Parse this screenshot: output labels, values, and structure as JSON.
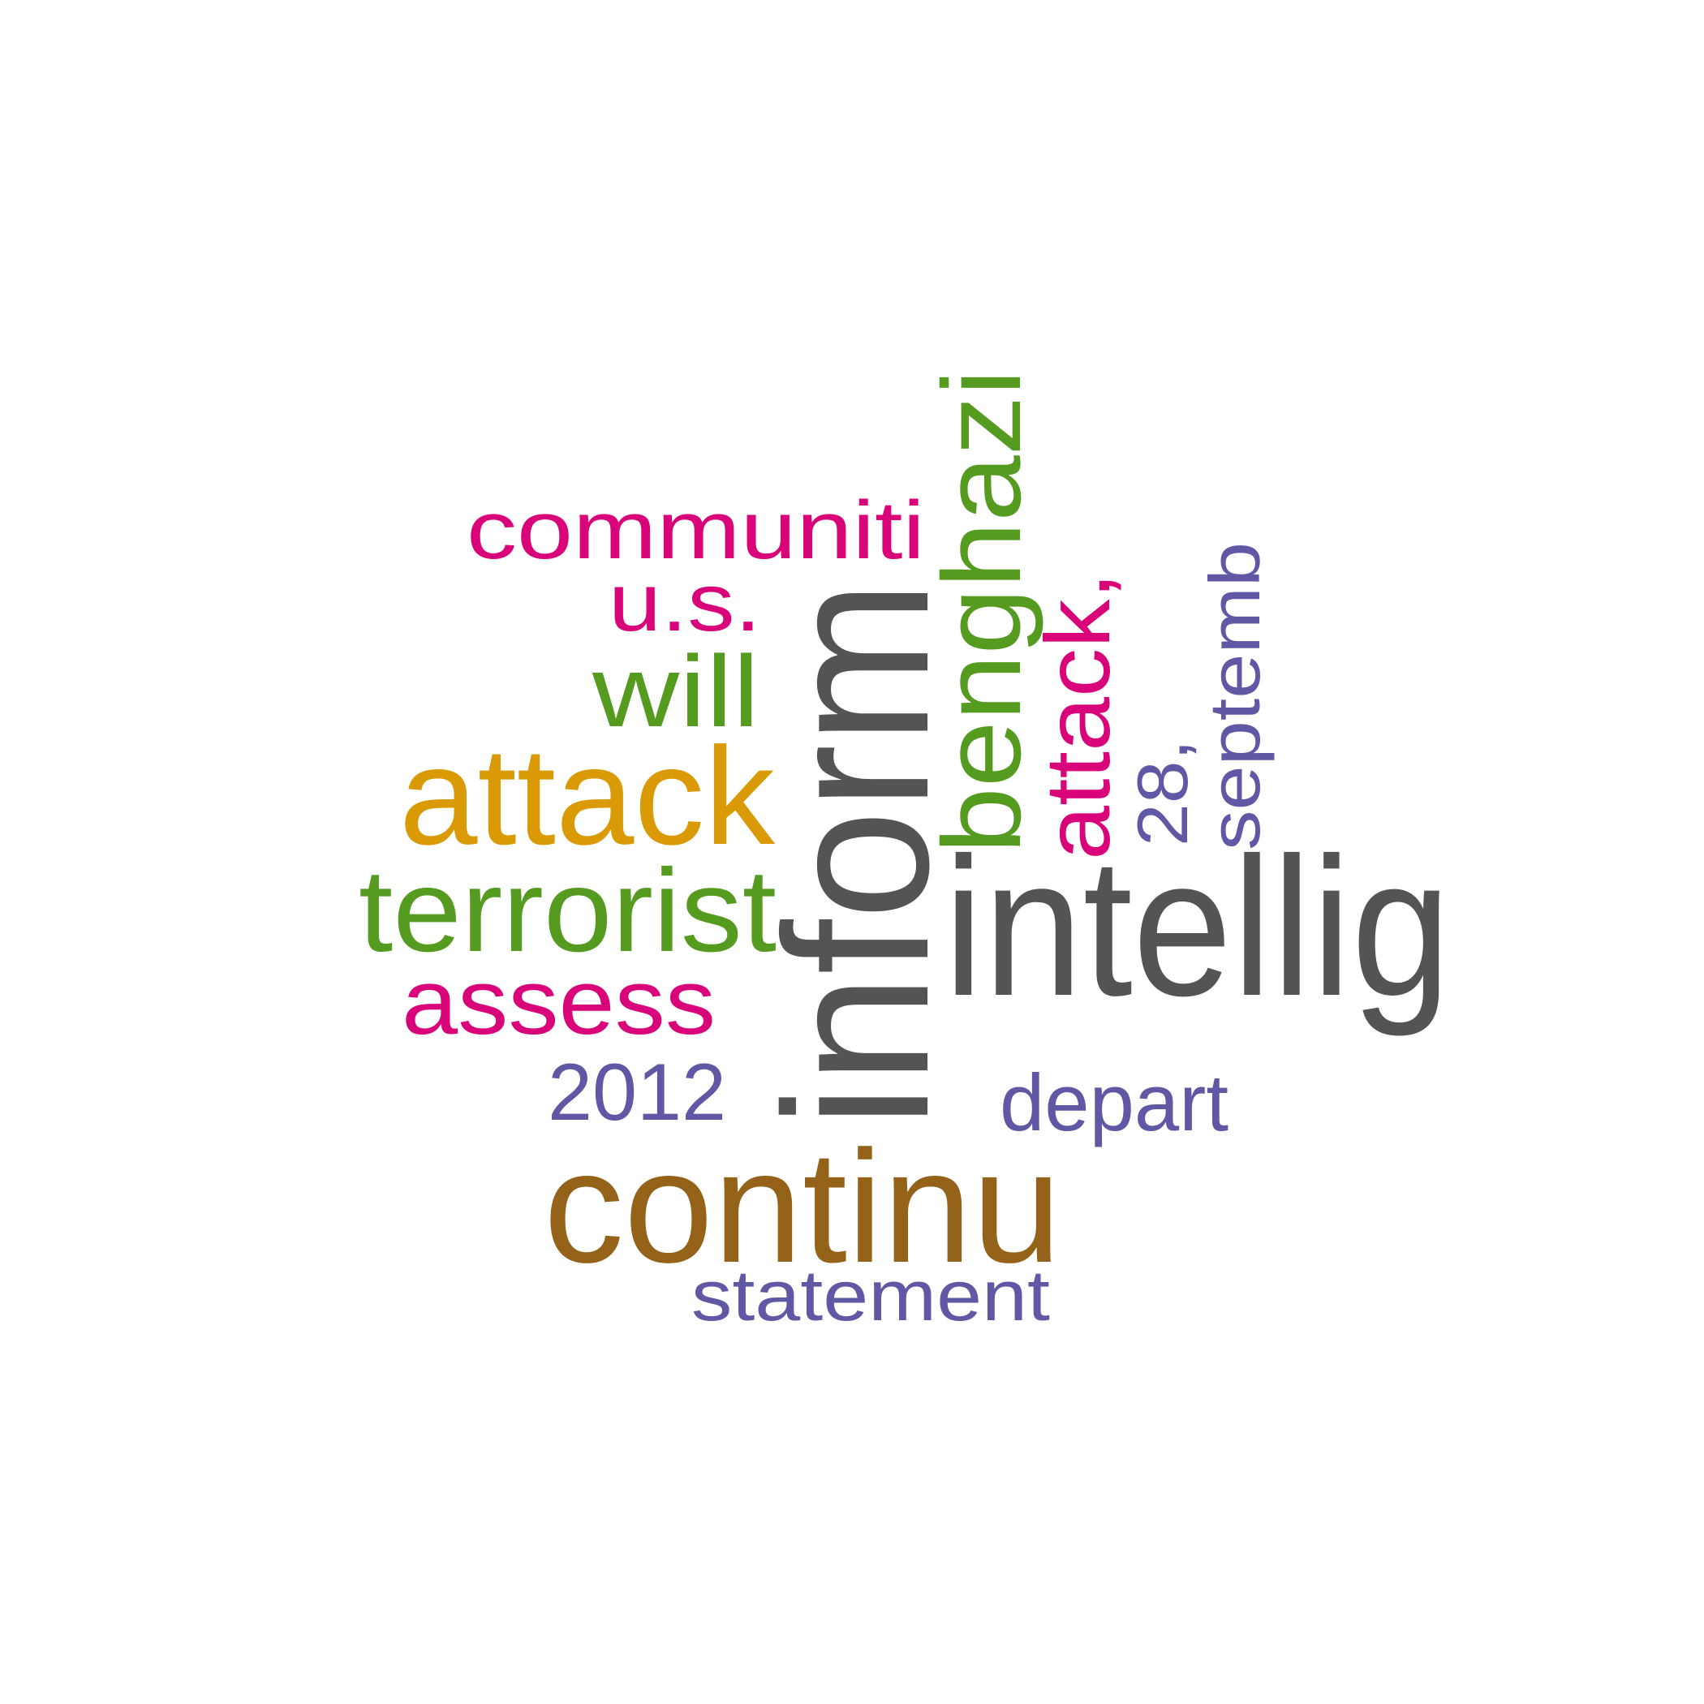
{
  "colors": {
    "gray": "#545454",
    "green": "#559b1f",
    "magenta": "#d9037a",
    "orange": "#da9a05",
    "brown": "#946218",
    "purple": "#6158a5"
  },
  "words": [
    {
      "text": "inform",
      "color": "gray",
      "orientation": "vertical"
    },
    {
      "text": "intellig",
      "color": "gray",
      "orientation": "horizontal"
    },
    {
      "text": "continu",
      "color": "brown",
      "orientation": "horizontal"
    },
    {
      "text": "attack",
      "color": "orange",
      "orientation": "horizontal"
    },
    {
      "text": "benghazi",
      "color": "green",
      "orientation": "vertical"
    },
    {
      "text": "terrorist",
      "color": "green",
      "orientation": "horizontal"
    },
    {
      "text": "will",
      "color": "green",
      "orientation": "horizontal"
    },
    {
      "text": "communiti",
      "color": "magenta",
      "orientation": "horizontal"
    },
    {
      "text": "u.s.",
      "color": "magenta",
      "orientation": "horizontal"
    },
    {
      "text": "assess",
      "color": "magenta",
      "orientation": "horizontal"
    },
    {
      "text": "attack,",
      "color": "magenta",
      "orientation": "vertical"
    },
    {
      "text": "2012",
      "color": "purple",
      "orientation": "horizontal"
    },
    {
      "text": "depart",
      "color": "purple",
      "orientation": "horizontal"
    },
    {
      "text": "statement",
      "color": "purple",
      "orientation": "horizontal"
    },
    {
      "text": "28,",
      "color": "purple",
      "orientation": "vertical"
    },
    {
      "text": "septemb",
      "color": "purple",
      "orientation": "vertical"
    }
  ]
}
